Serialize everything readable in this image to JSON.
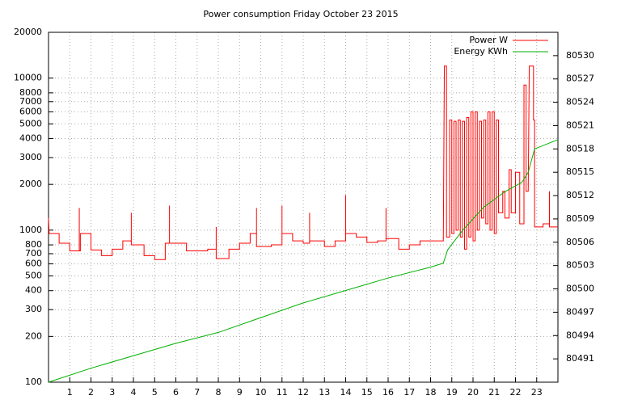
{
  "chart_data": {
    "type": "line",
    "title": "Power consumption Friday October 23 2015",
    "xlim": [
      0,
      24
    ],
    "xticks": [
      1,
      2,
      3,
      4,
      5,
      6,
      7,
      8,
      9,
      10,
      11,
      12,
      13,
      14,
      15,
      16,
      17,
      18,
      19,
      20,
      21,
      22,
      23
    ],
    "ylim": [
      100,
      20000
    ],
    "ylog": true,
    "yticks": [
      100,
      200,
      300,
      400,
      500,
      600,
      700,
      800,
      1000,
      2000,
      3000,
      4000,
      5000,
      6000,
      7000,
      8000,
      10000,
      20000
    ],
    "y2lim": [
      80488,
      80533
    ],
    "y2ticks": [
      80491,
      80494,
      80497,
      80500,
      80503,
      80506,
      80509,
      80512,
      80515,
      80518,
      80521,
      80524,
      80527,
      80530
    ],
    "grid": true,
    "legend": "top-right",
    "series": [
      {
        "name": "Power W",
        "color": "#ff0000",
        "x": [
          0,
          0.03,
          0.5,
          0.5,
          1.0,
          1.0,
          1.45,
          1.45,
          1.45,
          1.5,
          1.5,
          2.0,
          2.0,
          2.5,
          2.5,
          3.0,
          3.0,
          3.5,
          3.5,
          3.9,
          3.9,
          3.9,
          4.5,
          4.5,
          5.0,
          5.0,
          5.5,
          5.5,
          5.7,
          5.7,
          5.7,
          6.5,
          6.5,
          7.5,
          7.5,
          7.9,
          7.9,
          7.9,
          8.5,
          8.5,
          9.0,
          9.0,
          9.5,
          9.5,
          9.8,
          9.8,
          9.8,
          10.5,
          10.5,
          11.0,
          11.0,
          11.0,
          11.5,
          11.5,
          12.0,
          12.0,
          12.3,
          12.3,
          12.3,
          13.0,
          13.0,
          13.5,
          13.5,
          14.0,
          14.0,
          14.0,
          14.5,
          14.5,
          15.0,
          15.0,
          15.5,
          15.5,
          15.9,
          15.9,
          15.9,
          16.5,
          16.5,
          17.0,
          17.0,
          17.5,
          17.5,
          18.6,
          18.65,
          18.75,
          18.75,
          18.9,
          18.9,
          19.0,
          19.0,
          19.1,
          19.1,
          19.2,
          19.2,
          19.3,
          19.3,
          19.4,
          19.4,
          19.5,
          19.5,
          19.6,
          19.6,
          19.7,
          19.7,
          19.8,
          19.8,
          19.9,
          19.9,
          20.0,
          20.0,
          20.1,
          20.1,
          20.2,
          20.2,
          20.3,
          20.3,
          20.4,
          20.4,
          20.5,
          20.5,
          20.6,
          20.6,
          20.7,
          20.7,
          20.8,
          20.8,
          20.9,
          20.9,
          21.0,
          21.0,
          21.1,
          21.1,
          21.2,
          21.2,
          21.4,
          21.4,
          21.5,
          21.5,
          21.7,
          21.7,
          21.8,
          21.8,
          22.0,
          22.0,
          22.2,
          22.2,
          22.4,
          22.4,
          22.5,
          22.5,
          22.6,
          22.65,
          22.85,
          22.85,
          22.9,
          22.9,
          23.3,
          23.3,
          23.6,
          23.6,
          23.6,
          24
        ],
        "values": [
          1200,
          950,
          950,
          820,
          820,
          730,
          730,
          1400,
          730,
          730,
          950,
          950,
          740,
          740,
          680,
          680,
          750,
          750,
          850,
          850,
          1300,
          800,
          800,
          680,
          680,
          640,
          640,
          820,
          820,
          1450,
          820,
          820,
          730,
          730,
          750,
          750,
          1050,
          650,
          650,
          750,
          750,
          820,
          820,
          950,
          950,
          1400,
          780,
          780,
          800,
          800,
          1450,
          950,
          950,
          850,
          850,
          820,
          820,
          1300,
          850,
          850,
          780,
          780,
          850,
          850,
          1700,
          950,
          950,
          900,
          900,
          830,
          830,
          850,
          850,
          1400,
          880,
          880,
          750,
          750,
          800,
          800,
          850,
          850,
          12000,
          12000,
          900,
          900,
          5300,
          5300,
          950,
          950,
          5200,
          5200,
          1000,
          1000,
          5300,
          5300,
          900,
          900,
          5200,
          5200,
          750,
          750,
          5500,
          5500,
          900,
          900,
          6000,
          6000,
          850,
          850,
          6000,
          6000,
          1000,
          1000,
          5200,
          5200,
          1200,
          1200,
          5300,
          5300,
          1100,
          1100,
          6000,
          6000,
          1000,
          1000,
          6000,
          6000,
          950,
          950,
          5300,
          5300,
          1300,
          1300,
          1800,
          1800,
          1200,
          1200,
          2500,
          2500,
          1300,
          1300,
          2400,
          2400,
          1100,
          1100,
          9000,
          9000,
          1800,
          1800,
          12000,
          12000,
          5300,
          5300,
          1050,
          1050,
          1100,
          1100,
          1800,
          1050,
          1050
        ]
      },
      {
        "name": "Energy KWh",
        "color": "#00b000",
        "axis": "y2",
        "x": [
          0,
          2,
          4,
          6,
          8,
          10,
          12,
          14,
          16,
          18,
          18.6,
          18.8,
          19.5,
          20.5,
          21.5,
          22.3,
          22.6,
          22.9,
          24
        ],
        "values": [
          80488.0,
          80489.8,
          80491.4,
          80493.0,
          80494.4,
          80496.3,
          80498.2,
          80499.8,
          80501.4,
          80502.8,
          80503.3,
          80505.0,
          80507.5,
          80510.5,
          80512.5,
          80513.7,
          80515.0,
          80518.0,
          80519.2
        ]
      }
    ]
  }
}
